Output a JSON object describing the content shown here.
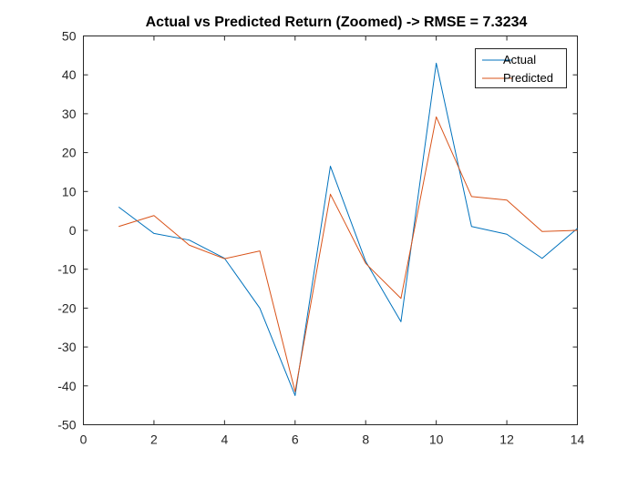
{
  "chart_data": {
    "type": "line",
    "title": "Actual vs Predicted Return (Zoomed) -> RMSE = 7.3234",
    "xlabel": "",
    "ylabel": "",
    "xlim": [
      0,
      14
    ],
    "ylim": [
      -50,
      50
    ],
    "xticks": [
      0,
      2,
      4,
      6,
      8,
      10,
      12,
      14
    ],
    "yticks": [
      -50,
      -40,
      -30,
      -20,
      -10,
      0,
      10,
      20,
      30,
      40,
      50
    ],
    "grid": false,
    "legend_position": "top-right",
    "x": [
      1,
      2,
      3,
      4,
      5,
      6,
      7,
      8,
      9,
      10,
      11,
      12,
      13,
      14
    ],
    "series": [
      {
        "name": "Actual",
        "color": "#0072BD",
        "values": [
          6,
          -0.8,
          -2.5,
          -7.2,
          -20,
          -42.5,
          16.5,
          -8,
          -23.5,
          43,
          1,
          -1,
          -7.2,
          0.5
        ]
      },
      {
        "name": "Predicted",
        "color": "#D95319",
        "values": [
          1,
          3.8,
          -3.8,
          -7.3,
          -5.3,
          -41.5,
          9.3,
          -8.5,
          -17.5,
          29.2,
          8.7,
          7.8,
          -0.3,
          0
        ]
      }
    ]
  }
}
